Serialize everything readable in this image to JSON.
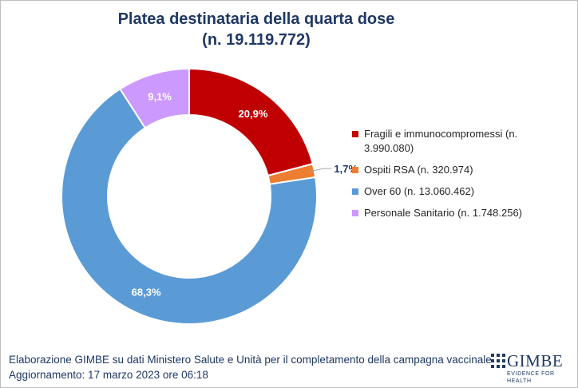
{
  "chart_data": {
    "type": "pie",
    "variant": "doughnut",
    "title": "Platea destinataria della quarta dose",
    "subtitle": "(n. 19.119.772)",
    "series": [
      {
        "name": "Fragili e immunocompromessi (n. 3.990.080)",
        "value": 20.9,
        "label": "20,9%",
        "color": "#c00000"
      },
      {
        "name": "Ospiti RSA (n. 320.974)",
        "value": 1.7,
        "label": "1,7%",
        "color": "#ed7d31"
      },
      {
        "name": "Over 60 (n. 13.060.462)",
        "value": 68.3,
        "label": "68,3%",
        "color": "#5b9bd5"
      },
      {
        "name": "Personale Sanitario (n. 1.748.256)",
        "value": 9.1,
        "label": "9,1%",
        "color": "#cc99ff"
      }
    ],
    "legend_position": "right"
  },
  "footer": {
    "line1": "Elaborazione GIMBE su dati Ministero Salute e Unità per il completamento della campagna vaccinale",
    "line2": "Aggiornamento: 17 marzo 2023 ore 06:18"
  },
  "logo": {
    "name": "GIMBE",
    "tagline": "EVIDENCE FOR HEALTH",
    "icon": "gimbe-grid-logo-icon"
  },
  "colors": {
    "title": "#1f3864",
    "label_dark": "#1f3864",
    "label_light": "#ffffff"
  }
}
